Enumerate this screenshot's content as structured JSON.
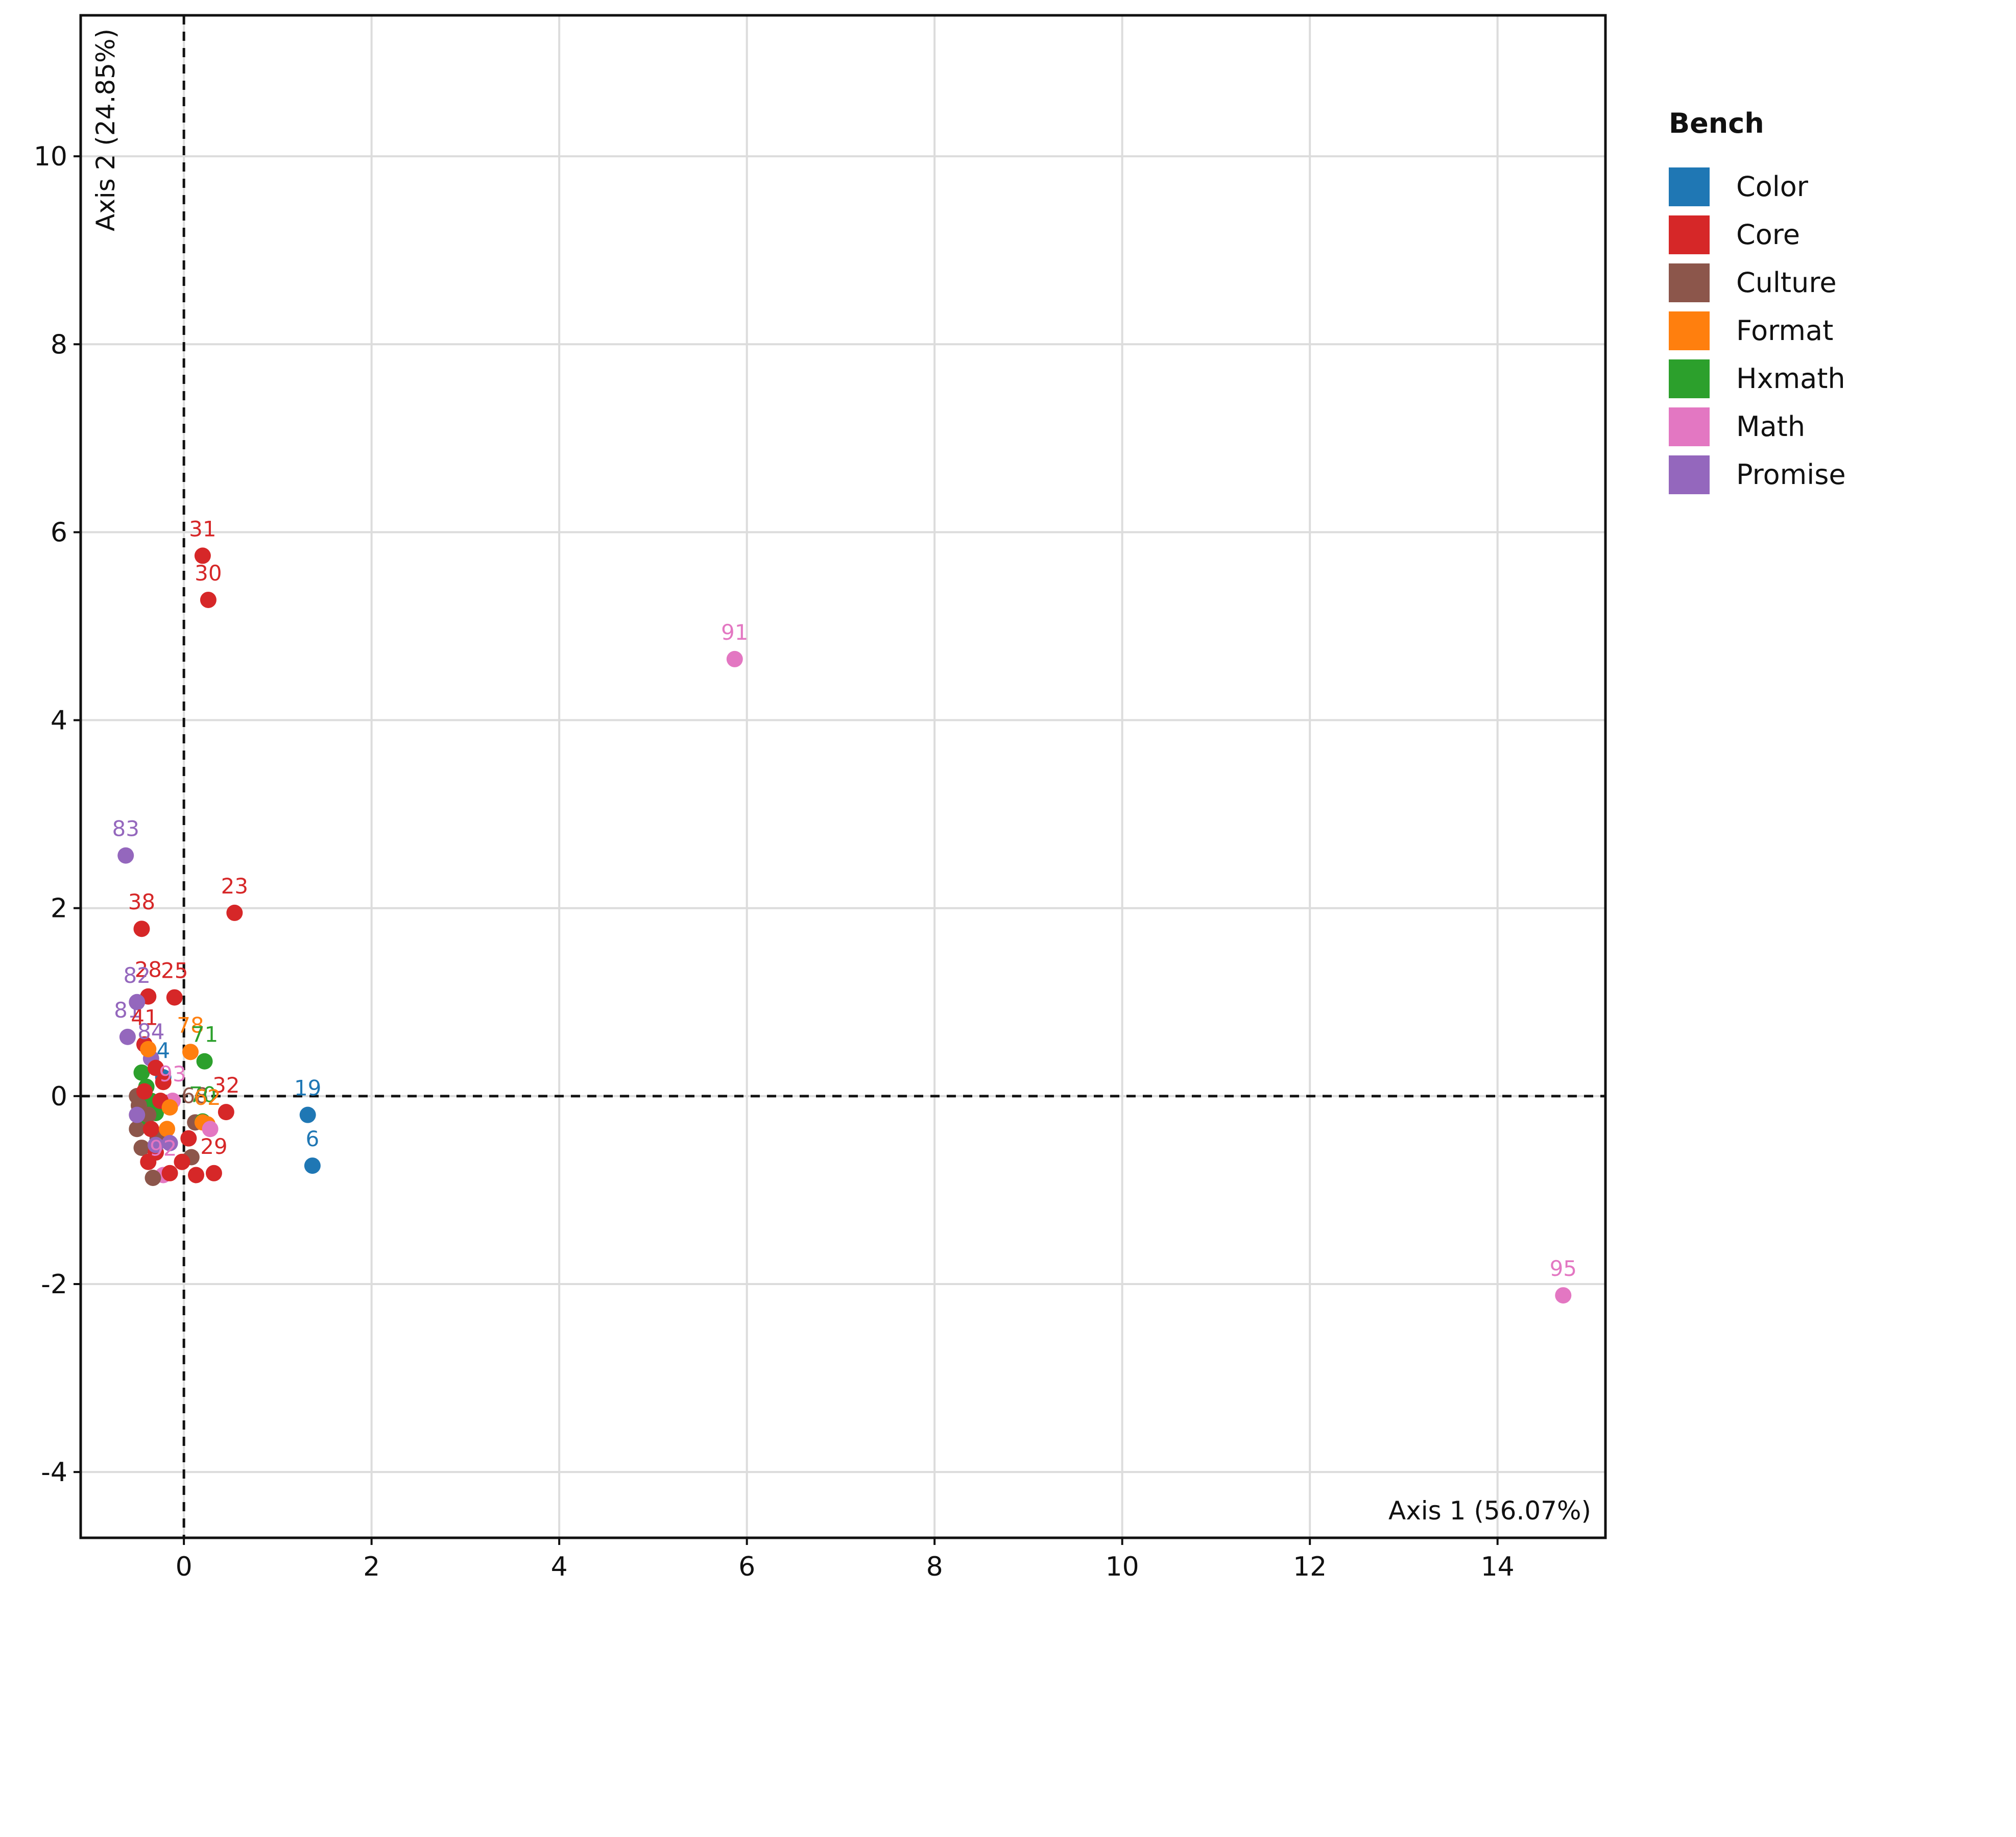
{
  "chart_data": {
    "type": "scatter",
    "title": "",
    "xlabel": "Axis 1 (56.07%)",
    "ylabel": "Axis 2 (24.85%)",
    "xlim": [
      -1.1,
      15.15
    ],
    "ylim": [
      -4.7,
      11.5
    ],
    "x_ticks": [
      0,
      2,
      4,
      6,
      8,
      10,
      12,
      14
    ],
    "y_ticks": [
      -4,
      -2,
      0,
      2,
      4,
      6,
      8,
      10
    ],
    "x_tick_labels": [
      "0",
      "2",
      "4",
      "6",
      "8",
      "10",
      "12",
      "14"
    ],
    "y_tick_labels": [
      "-4",
      "-2",
      "0",
      "2",
      "4",
      "6",
      "8",
      "10"
    ],
    "grid": true,
    "reference_lines": {
      "x": 0,
      "y": 0,
      "style": "dashed"
    },
    "legend": {
      "title": "Bench",
      "position": "right",
      "entries": [
        {
          "name": "Color",
          "color": "#1f77b4"
        },
        {
          "name": "Core",
          "color": "#d62728"
        },
        {
          "name": "Culture",
          "color": "#8c564b"
        },
        {
          "name": "Format",
          "color": "#ff7f0e"
        },
        {
          "name": "Hxmath",
          "color": "#2ca02c"
        },
        {
          "name": "Math",
          "color": "#e377c2"
        },
        {
          "name": "Promise",
          "color": "#9467bd"
        }
      ]
    },
    "points": [
      {
        "label": "31",
        "x": 0.2,
        "y": 5.75,
        "group": "Core"
      },
      {
        "label": "30",
        "x": 0.26,
        "y": 5.28,
        "group": "Core"
      },
      {
        "label": "91",
        "x": 5.87,
        "y": 4.65,
        "group": "Math"
      },
      {
        "label": "83",
        "x": -0.62,
        "y": 2.56,
        "group": "Promise"
      },
      {
        "label": "23",
        "x": 0.54,
        "y": 1.95,
        "group": "Core"
      },
      {
        "label": "38",
        "x": -0.45,
        "y": 1.78,
        "group": "Core"
      },
      {
        "label": "25",
        "x": -0.1,
        "y": 1.05,
        "group": "Core"
      },
      {
        "label": "28",
        "x": -0.38,
        "y": 1.06,
        "group": "Core"
      },
      {
        "label": "82",
        "x": -0.5,
        "y": 1.0,
        "group": "Promise"
      },
      {
        "label": "81",
        "x": -0.6,
        "y": 0.63,
        "group": "Promise"
      },
      {
        "label": "78",
        "x": 0.07,
        "y": 0.47,
        "group": "Format"
      },
      {
        "label": "71",
        "x": 0.22,
        "y": 0.37,
        "group": "Hxmath"
      },
      {
        "label": "41",
        "x": -0.42,
        "y": 0.55,
        "group": "Core"
      },
      {
        "label": "84",
        "x": -0.35,
        "y": 0.4,
        "group": "Promise"
      },
      {
        "label": "4",
        "x": -0.22,
        "y": 0.2,
        "group": "Color"
      },
      {
        "label": "19",
        "x": 1.32,
        "y": -0.2,
        "group": "Color"
      },
      {
        "label": "32",
        "x": 0.45,
        "y": -0.17,
        "group": "Core"
      },
      {
        "label": "93",
        "x": -0.12,
        "y": -0.05,
        "group": "Math"
      },
      {
        "label": "68",
        "x": 0.12,
        "y": -0.28,
        "group": "Culture"
      },
      {
        "label": "70",
        "x": 0.2,
        "y": -0.27,
        "group": "Hxmath"
      },
      {
        "label": "62",
        "x": 0.25,
        "y": -0.3,
        "group": "Format"
      },
      {
        "label": "6",
        "x": 1.37,
        "y": -0.74,
        "group": "Color"
      },
      {
        "label": "29",
        "x": 0.32,
        "y": -0.82,
        "group": "Core"
      },
      {
        "label": "92",
        "x": -0.22,
        "y": -0.84,
        "group": "Math"
      },
      {
        "label": "95",
        "x": 14.7,
        "y": -2.12,
        "group": "Math"
      },
      {
        "label": "",
        "x": -0.45,
        "y": 0.25,
        "group": "Hxmath"
      },
      {
        "label": "",
        "x": -0.4,
        "y": 0.1,
        "group": "Hxmath"
      },
      {
        "label": "",
        "x": -0.35,
        "y": -0.05,
        "group": "Hxmath"
      },
      {
        "label": "",
        "x": -0.42,
        "y": -0.28,
        "group": "Hxmath"
      },
      {
        "label": "",
        "x": -0.3,
        "y": -0.18,
        "group": "Hxmath"
      },
      {
        "label": "",
        "x": -0.5,
        "y": -0.35,
        "group": "Culture"
      },
      {
        "label": "",
        "x": -0.48,
        "y": -0.1,
        "group": "Culture"
      },
      {
        "label": "",
        "x": -0.45,
        "y": -0.55,
        "group": "Culture"
      },
      {
        "label": "",
        "x": -0.33,
        "y": -0.87,
        "group": "Culture"
      },
      {
        "label": "",
        "x": 0.08,
        "y": -0.65,
        "group": "Culture"
      },
      {
        "label": "",
        "x": -0.28,
        "y": -0.45,
        "group": "Culture"
      },
      {
        "label": "",
        "x": -0.5,
        "y": 0.0,
        "group": "Culture"
      },
      {
        "label": "",
        "x": -0.38,
        "y": -0.2,
        "group": "Culture"
      },
      {
        "label": "",
        "x": -0.38,
        "y": -0.7,
        "group": "Core"
      },
      {
        "label": "",
        "x": -0.3,
        "y": -0.6,
        "group": "Core"
      },
      {
        "label": "",
        "x": -0.15,
        "y": -0.82,
        "group": "Core"
      },
      {
        "label": "",
        "x": 0.13,
        "y": -0.84,
        "group": "Core"
      },
      {
        "label": "",
        "x": -0.02,
        "y": -0.7,
        "group": "Core"
      },
      {
        "label": "",
        "x": -0.42,
        "y": 0.05,
        "group": "Core"
      },
      {
        "label": "",
        "x": -0.3,
        "y": 0.3,
        "group": "Core"
      },
      {
        "label": "",
        "x": -0.22,
        "y": 0.15,
        "group": "Core"
      },
      {
        "label": "",
        "x": -0.35,
        "y": -0.35,
        "group": "Core"
      },
      {
        "label": "",
        "x": 0.05,
        "y": -0.45,
        "group": "Core"
      },
      {
        "label": "",
        "x": -0.25,
        "y": -0.05,
        "group": "Core"
      },
      {
        "label": "",
        "x": -0.15,
        "y": -0.12,
        "group": "Format"
      },
      {
        "label": "",
        "x": -0.38,
        "y": 0.5,
        "group": "Format"
      },
      {
        "label": "",
        "x": -0.18,
        "y": -0.35,
        "group": "Format"
      },
      {
        "label": "",
        "x": 0.2,
        "y": -0.28,
        "group": "Format"
      },
      {
        "label": "",
        "x": 0.28,
        "y": -0.35,
        "group": "Math"
      },
      {
        "label": "",
        "x": -0.3,
        "y": -0.52,
        "group": "Promise"
      },
      {
        "label": "",
        "x": -0.15,
        "y": -0.5,
        "group": "Promise"
      },
      {
        "label": "",
        "x": -0.5,
        "y": -0.2,
        "group": "Promise"
      }
    ]
  }
}
